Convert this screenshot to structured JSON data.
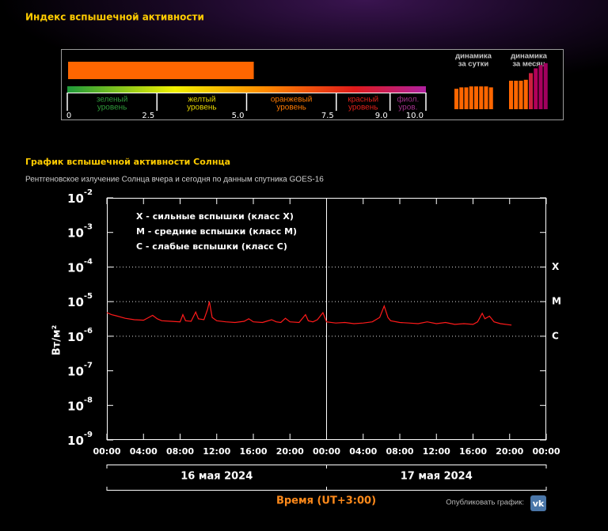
{
  "header": {
    "title": "Индекс вспышечной активности"
  },
  "index_widget": {
    "value": 5.2,
    "lim": [
      0,
      10
    ],
    "ticks": [
      0,
      2.5,
      {
        "value": 5,
        "label": "5.0"
      },
      7.5,
      {
        "value": 9,
        "label": "9.0"
      },
      {
        "value": 10,
        "label": "10.0"
      }
    ],
    "levels": [
      {
        "lines": [
          "зеленый",
          "уровень"
        ],
        "color": "#2f9a3a"
      },
      {
        "lines": [
          "желтый",
          "уровень"
        ],
        "color": "#e8d800"
      },
      {
        "lines": [
          "оранжевый",
          "уровень"
        ],
        "color": "#ff7a00"
      },
      {
        "lines": [
          "красный",
          "уровень"
        ],
        "color": "#e0201a"
      },
      {
        "lines": [
          "фиол.",
          "уров."
        ],
        "color": "#a0308a"
      }
    ],
    "daily": {
      "title": [
        "динамика",
        "за сутки"
      ],
      "values": [
        4.3,
        4.6,
        4.6,
        4.8,
        4.8,
        4.8,
        4.8,
        4.6
      ],
      "colors": [
        "#ff6600",
        "#ff6600",
        "#ff6600",
        "#ff6600",
        "#ff6600",
        "#ff6600",
        "#ff6600",
        "#ff6600"
      ]
    },
    "monthly": {
      "title": [
        "динамика",
        "за месяц"
      ],
      "values": [
        6.0,
        6.0,
        6.0,
        6.2,
        7.6,
        8.6,
        9.3,
        9.7
      ],
      "colors": [
        "#ff6600",
        "#ff6600",
        "#ff6600",
        "#ff6600",
        "#cc1f3f",
        "#b3005a",
        "#a8005e",
        "#a0005e"
      ]
    }
  },
  "chart_data": {
    "type": "line",
    "title": "График вспышечной активности Солнца",
    "subtitle": "Рентгеновское излучение Солнца вчера и сегодня по данным спутника GOES-16",
    "ylabel": "Вт/м²",
    "xlabel": "Время (UT+3:00)",
    "log_y": true,
    "ylim": [
      1e-09,
      0.01
    ],
    "yticks": [
      {
        "value": 1e-09,
        "label": "10-9"
      },
      {
        "value": 1e-08,
        "label": "10-8"
      },
      {
        "value": 1e-07,
        "label": "10-7"
      },
      {
        "value": 1e-06,
        "label": "10-6"
      },
      {
        "value": 1e-05,
        "label": "10-5"
      },
      {
        "value": 0.0001,
        "label": "10-4"
      },
      {
        "value": 0.001,
        "label": "10-3"
      },
      {
        "value": 0.01,
        "label": "10-2"
      }
    ],
    "xlim": [
      0,
      48
    ],
    "xticks": [
      {
        "value": 0,
        "label": "00:00"
      },
      {
        "value": 4,
        "label": "04:00"
      },
      {
        "value": 8,
        "label": "08:00"
      },
      {
        "value": 12,
        "label": "12:00"
      },
      {
        "value": 16,
        "label": "16:00"
      },
      {
        "value": 20,
        "label": "20:00"
      },
      {
        "value": 24,
        "label": "00:00"
      },
      {
        "value": 28,
        "label": "04:00"
      },
      {
        "value": 32,
        "label": "08:00"
      },
      {
        "value": 36,
        "label": "12:00"
      },
      {
        "value": 40,
        "label": "16:00"
      },
      {
        "value": 44,
        "label": "20:00"
      },
      {
        "value": 48,
        "label": "00:00"
      }
    ],
    "class_lines": [
      {
        "value": 0.0001,
        "label": "X"
      },
      {
        "value": 1e-05,
        "label": "M"
      },
      {
        "value": 1e-06,
        "label": "C"
      }
    ],
    "legend_text": [
      "X  - сильные вспышки (класс X)",
      "M  - средние вспышки (класс M)",
      "C  - слабые вспышки (класс C)"
    ],
    "days": [
      {
        "label": "16 мая 2024",
        "start": 0,
        "end": 24
      },
      {
        "label": "17 мая 2024",
        "start": 24,
        "end": 48
      }
    ],
    "x": [
      0,
      0.5,
      1,
      2,
      3,
      4,
      4.5,
      5,
      5.5,
      6,
      7,
      8,
      8.3,
      8.6,
      9.2,
      9.7,
      10,
      10.6,
      11,
      11.2,
      11.5,
      12,
      13,
      14,
      15,
      15.5,
      16,
      17,
      18,
      18.5,
      19,
      19.5,
      20,
      21,
      21.7,
      22,
      22.5,
      23,
      23.6,
      24,
      25,
      26,
      27,
      28,
      29,
      29.8,
      30.3,
      30.7,
      31,
      32,
      33,
      34,
      35,
      36,
      37,
      38,
      39,
      40,
      40.5,
      41,
      41.3,
      41.8,
      42.3,
      43,
      44.2
    ],
    "series": [
      {
        "color": "#ff1a1a",
        "values": [
          4.8e-06,
          4.2e-06,
          3.9e-06,
          3.3e-06,
          3e-06,
          2.9e-06,
          3.4e-06,
          4e-06,
          3.2e-06,
          2.8e-06,
          2.7e-06,
          2.6e-06,
          4.2e-06,
          2.8e-06,
          2.7e-06,
          5e-06,
          3.2e-06,
          3e-06,
          6e-06,
          1e-05,
          3.5e-06,
          2.8e-06,
          2.6e-06,
          2.5e-06,
          2.7e-06,
          3.2e-06,
          2.6e-06,
          2.5e-06,
          3e-06,
          2.6e-06,
          2.5e-06,
          3.3e-06,
          2.6e-06,
          2.5e-06,
          4.2e-06,
          2.8e-06,
          2.6e-06,
          3e-06,
          4.8e-06,
          2.6e-06,
          2.4e-06,
          2.5e-06,
          2.3e-06,
          2.4e-06,
          2.6e-06,
          3.5e-06,
          7.5e-06,
          3.5e-06,
          2.8e-06,
          2.5e-06,
          2.4e-06,
          2.3e-06,
          2.6e-06,
          2.3e-06,
          2.5e-06,
          2.2e-06,
          2.3e-06,
          2.2e-06,
          2.6e-06,
          4.6e-06,
          3.2e-06,
          3.8e-06,
          2.6e-06,
          2.3e-06,
          2.1e-06
        ]
      }
    ]
  },
  "share": {
    "label": "Опубликовать график:",
    "icon_text": "vk"
  }
}
